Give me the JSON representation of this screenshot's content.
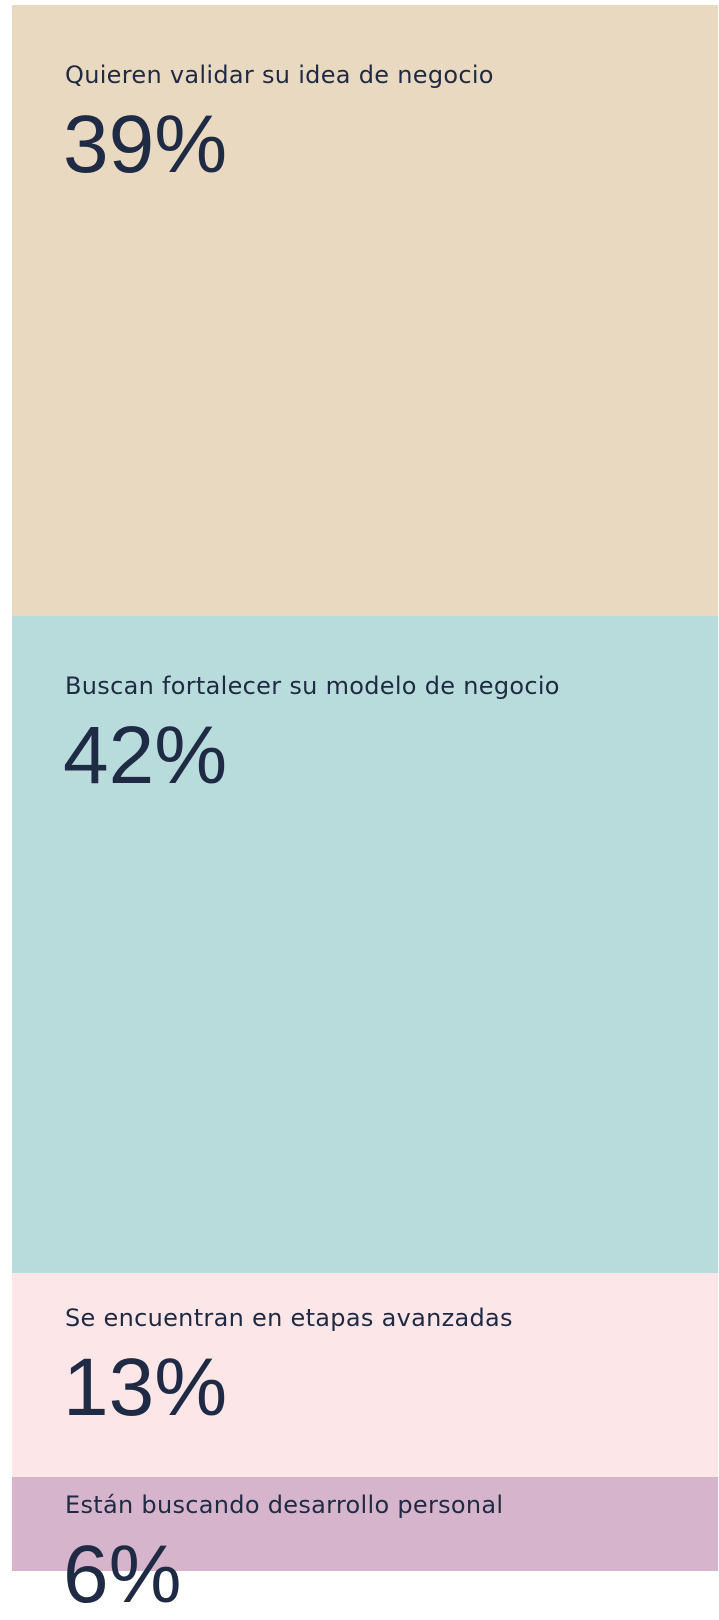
{
  "chart_data": {
    "type": "stacked-blocks",
    "categories": [
      "Quieren validar su idea de negocio",
      "Buscan fortalecer su modelo de negocio",
      "Se encuentran en etapas avanzadas",
      "Están buscando desarrollo personal"
    ],
    "values": [
      39,
      42,
      13,
      6
    ],
    "value_labels": [
      "39%",
      "42%",
      "13%",
      "6%"
    ],
    "colors": [
      "#e9d9c0",
      "#b8dcdc",
      "#fde6e7",
      "#d6b4cc"
    ]
  }
}
